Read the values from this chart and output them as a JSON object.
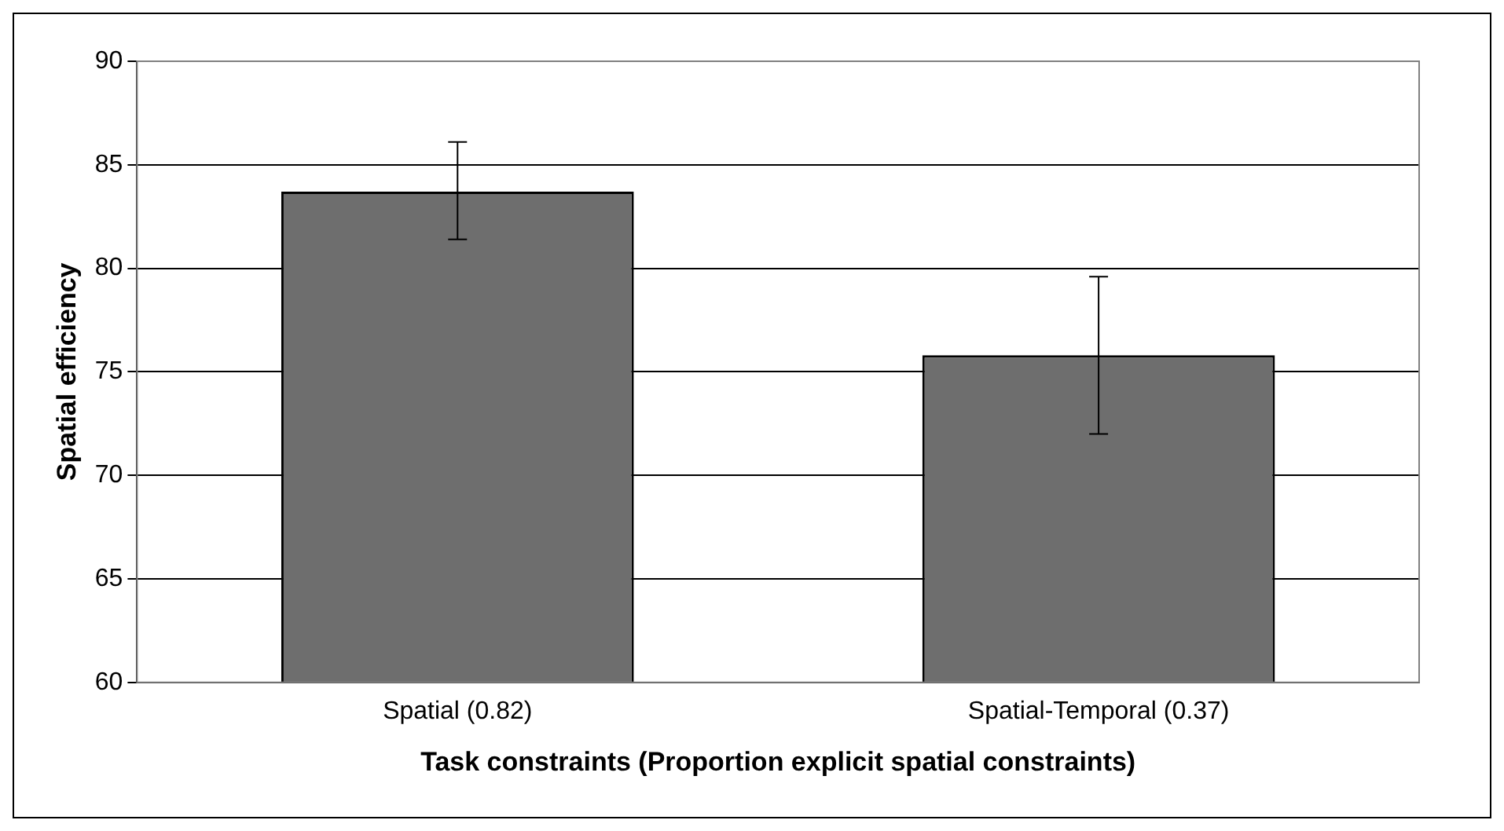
{
  "chart_data": {
    "type": "bar",
    "xlabel": "Task constraints (Proportion explicit spatial constraints)",
    "ylabel": "Spatial efficiency",
    "categories": [
      "Spatial (0.82)",
      "Spatial-Temporal (0.37)"
    ],
    "values": [
      83.7,
      75.8
    ],
    "errors": [
      [
        81.4,
        86.1
      ],
      [
        72.0,
        79.6
      ]
    ],
    "color": "#6e6e6e",
    "ylim": [
      60,
      90
    ],
    "yticks": [
      60,
      65,
      70,
      75,
      80,
      85,
      90
    ],
    "grid": "y",
    "legend": false
  }
}
